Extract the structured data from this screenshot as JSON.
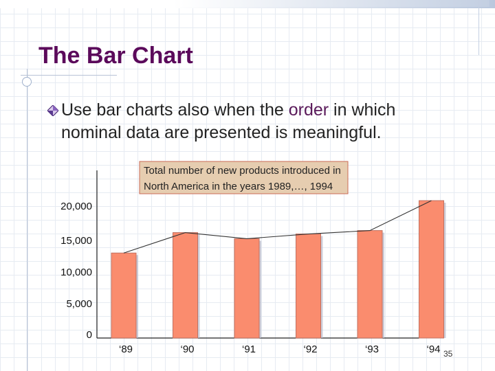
{
  "slide": {
    "title": "The Bar Chart",
    "bullet_parts": [
      "Use bar charts also when the ",
      "order",
      " in which"
    ],
    "bullet_line2": "nominal data are presented is meaningful.",
    "page_number": "35"
  },
  "icons": {
    "bullet": "diamond-bullet-icon"
  },
  "colors": {
    "title": "#5b0a5b",
    "bar_fill": "#fa8c6e",
    "bar_edge": "#c07060",
    "chart_title_box": "#e6cdb0",
    "chart_title_border": "#c96a55"
  },
  "chart_data": {
    "type": "bar",
    "title_lines": [
      "Total number of new products introduced in",
      "North America in the years 1989,…, 1994"
    ],
    "categories": [
      "‘89",
      "‘90",
      "‘91",
      "‘92",
      "‘93",
      "‘94"
    ],
    "values": [
      12500,
      15500,
      14600,
      15300,
      15800,
      20200
    ],
    "y_ticks": [
      {
        "value": 0,
        "label": "0"
      },
      {
        "value": 5000,
        "label": "5,000"
      },
      {
        "value": 10000,
        "label": "10,000"
      },
      {
        "value": 15000,
        "label": "15,000"
      },
      {
        "value": 20000,
        "label": "20,000"
      }
    ],
    "ylim": [
      0,
      20000
    ],
    "trend_line": true,
    "grid": false,
    "xlabel": "",
    "ylabel": ""
  }
}
